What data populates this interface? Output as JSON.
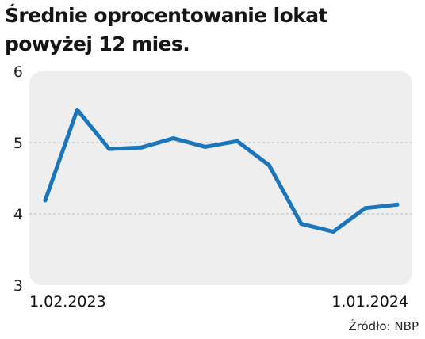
{
  "chart_data": {
    "type": "line",
    "title_lines": [
      "Średnie oprocentowanie lokat",
      "powyżej 12 mies."
    ],
    "source": "Źródło: NBP",
    "x_tick_labels": [
      "1.02.2023",
      "1.01.2024"
    ],
    "x": [
      "2023-02",
      "2023-03",
      "2023-04",
      "2023-05",
      "2023-06",
      "2023-07",
      "2023-08",
      "2023-09",
      "2023-10",
      "2023-11",
      "2023-12",
      "2024-01"
    ],
    "y_ticks": [
      3,
      4,
      5,
      6
    ],
    "ylim": [
      3,
      6
    ],
    "series": [
      {
        "values": [
          4.19,
          5.46,
          4.91,
          4.93,
          5.06,
          4.94,
          5.02,
          4.68,
          3.86,
          3.75,
          4.08,
          4.13
        ]
      }
    ],
    "grid": "horizontal dashed",
    "colors": {
      "line": "#1a75bb",
      "plot_bg": "#eeeeee",
      "grid": "#bbbbbb"
    }
  }
}
